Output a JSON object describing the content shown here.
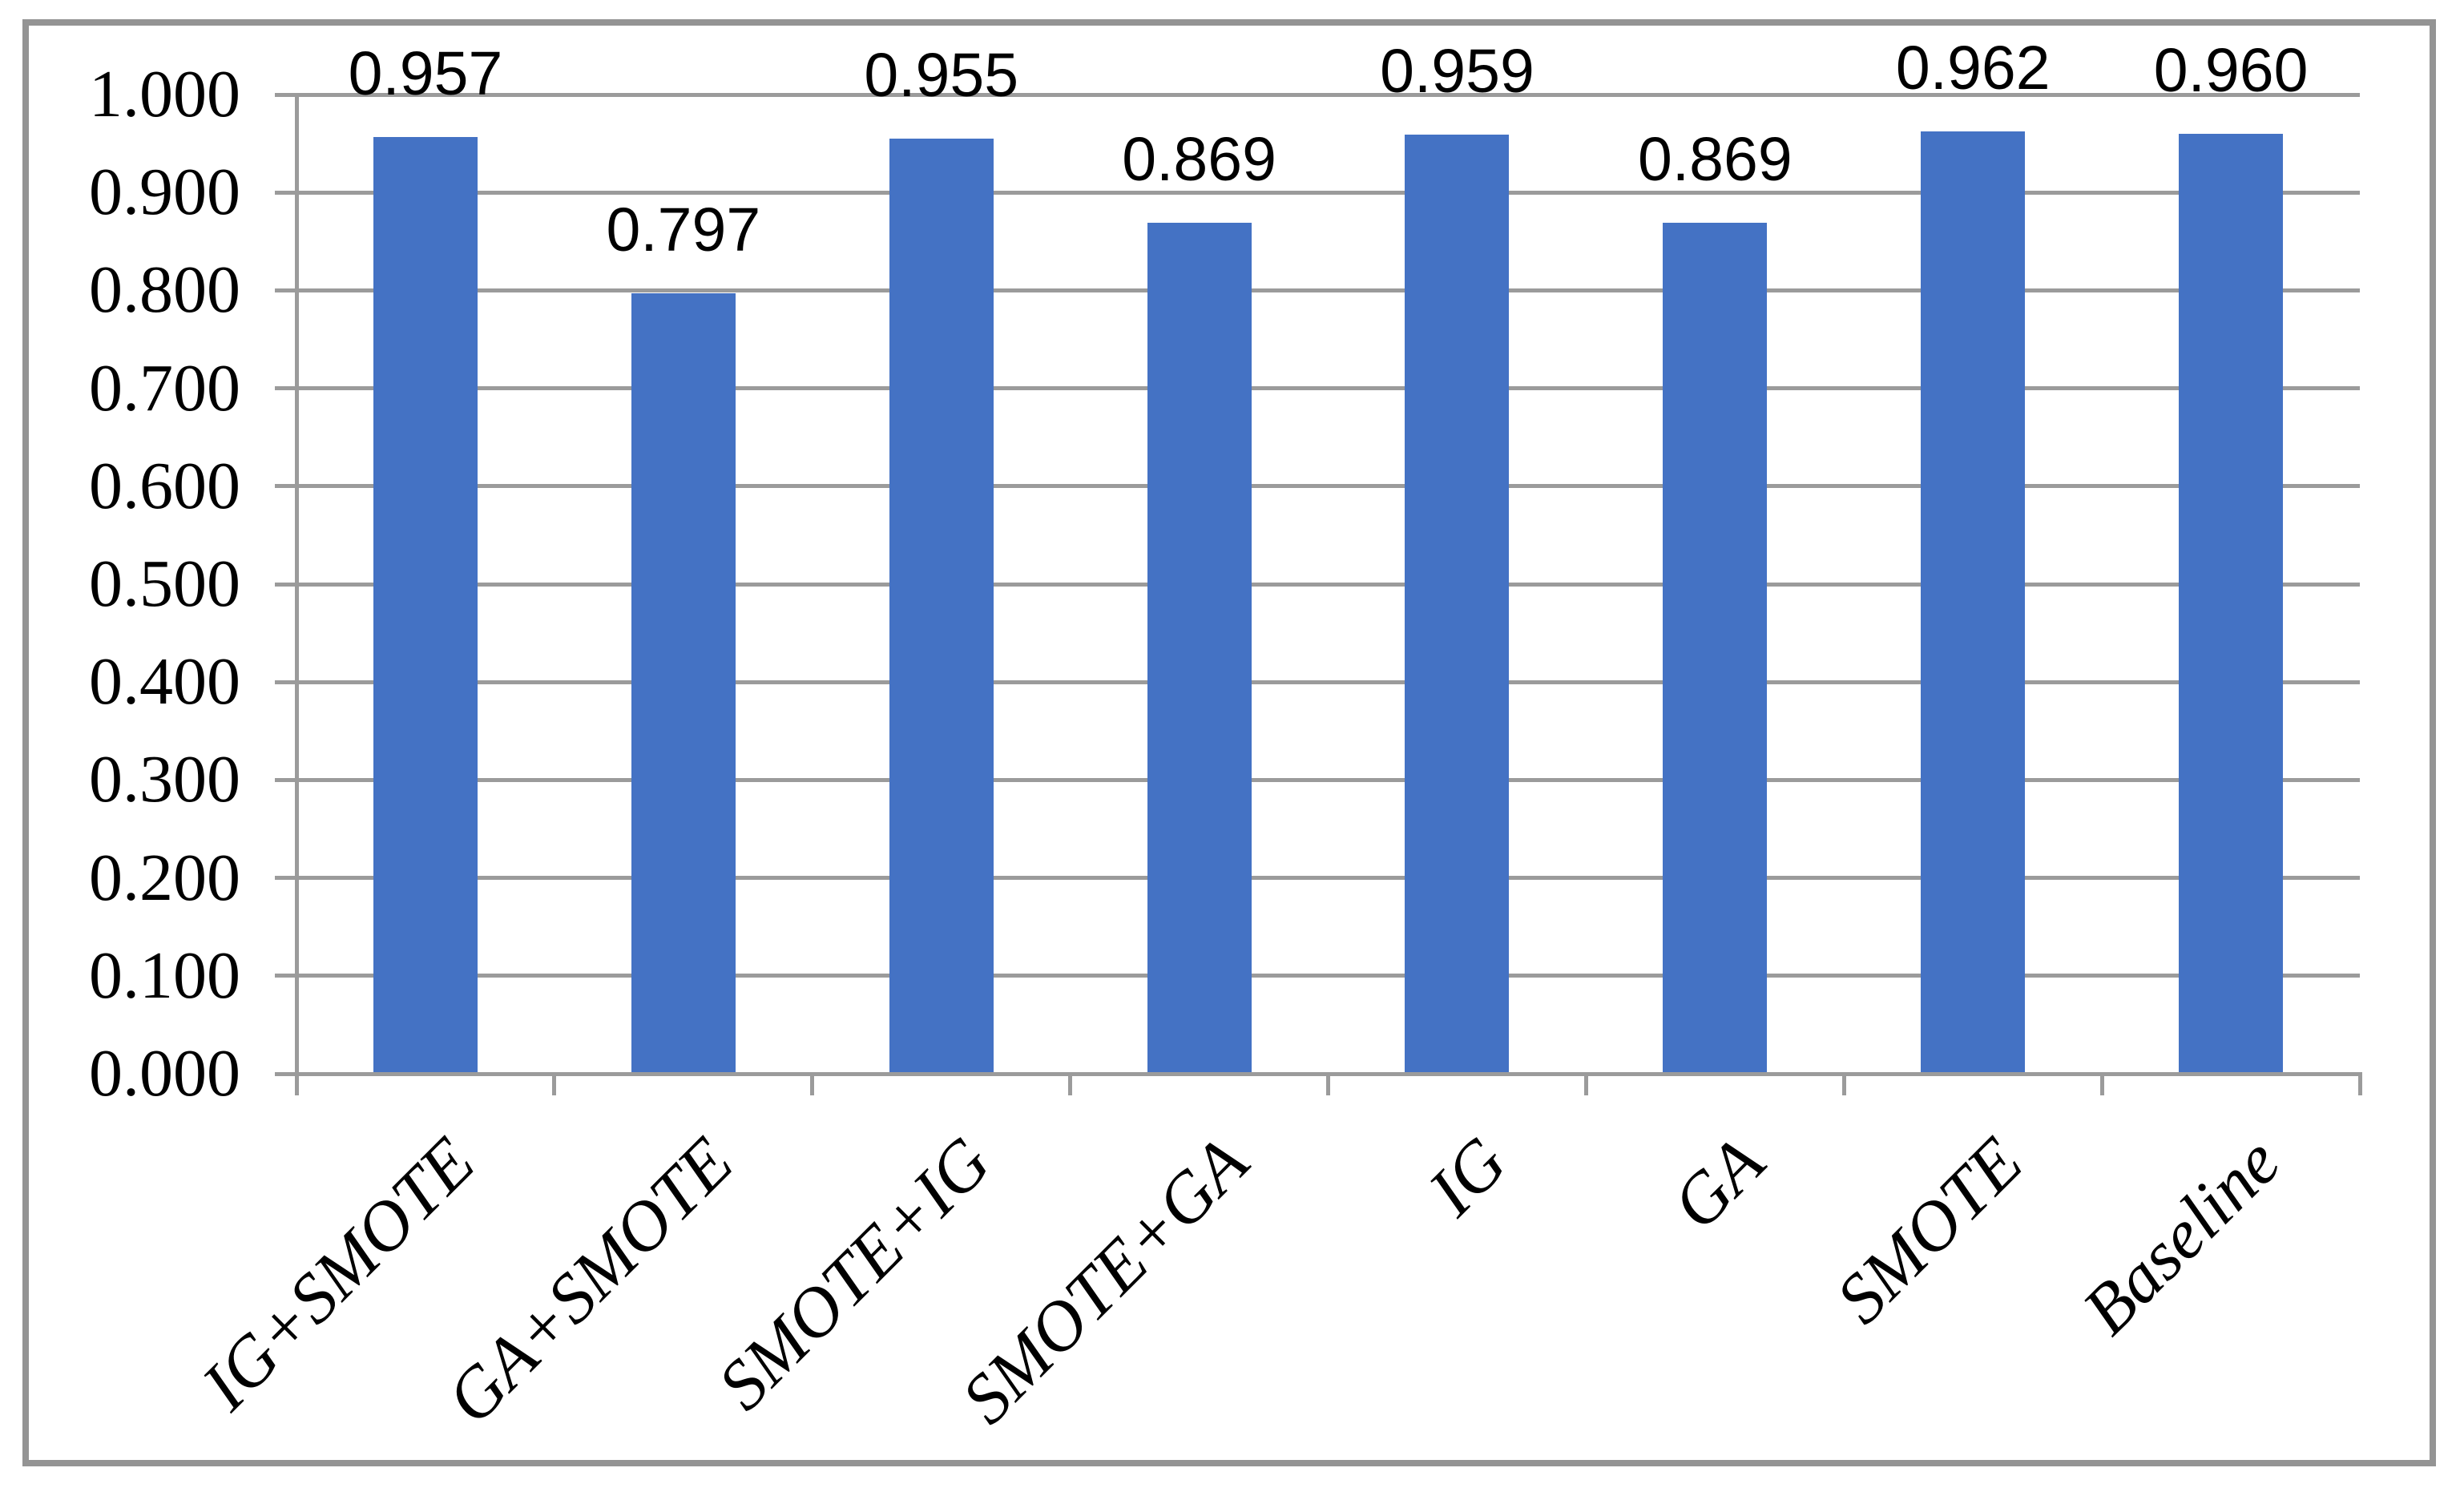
{
  "chart_data": {
    "type": "bar",
    "categories": [
      "IG+SMOTE",
      "GA+SMOTE",
      "SMOTE+IG",
      "SMOTE+GA",
      "IG",
      "GA",
      "SMOTE",
      "Baseline"
    ],
    "values": [
      0.957,
      0.797,
      0.955,
      0.869,
      0.959,
      0.869,
      0.962,
      0.96
    ],
    "data_labels": [
      "0.957",
      "0.797",
      "0.955",
      "0.869",
      "0.959",
      "0.869",
      "0.962",
      "0.960"
    ],
    "y_tick_labels": [
      "1.000",
      "0.900",
      "0.800",
      "0.700",
      "0.600",
      "0.500",
      "0.400",
      "0.300",
      "0.200",
      "0.100",
      "0.000"
    ],
    "title": "",
    "xlabel": "",
    "ylabel": "",
    "ylim": [
      0.0,
      1.0
    ],
    "y_major_step": 0.1,
    "grid": true,
    "legend": false,
    "bar_color": "#4472C4",
    "grid_color": "#9b9b9b",
    "border_color": "#949494",
    "label_rotation_deg": -45
  }
}
